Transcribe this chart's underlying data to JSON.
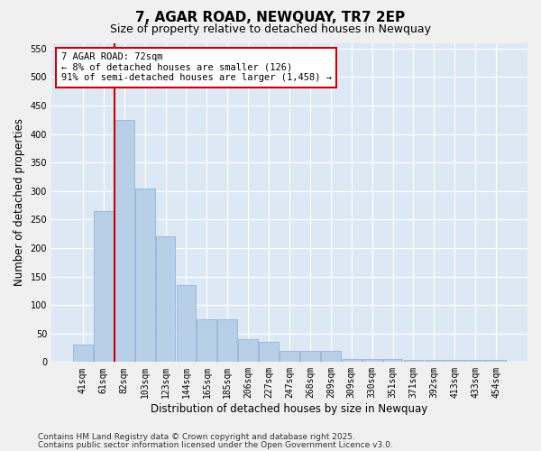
{
  "title_line1": "7, AGAR ROAD, NEWQUAY, TR7 2EP",
  "title_line2": "Size of property relative to detached houses in Newquay",
  "xlabel": "Distribution of detached houses by size in Newquay",
  "ylabel": "Number of detached properties",
  "categories": [
    "41sqm",
    "61sqm",
    "82sqm",
    "103sqm",
    "123sqm",
    "144sqm",
    "165sqm",
    "185sqm",
    "206sqm",
    "227sqm",
    "247sqm",
    "268sqm",
    "289sqm",
    "309sqm",
    "330sqm",
    "351sqm",
    "371sqm",
    "392sqm",
    "413sqm",
    "433sqm",
    "454sqm"
  ],
  "values": [
    30,
    265,
    425,
    305,
    220,
    135,
    75,
    75,
    40,
    35,
    20,
    20,
    20,
    5,
    5,
    5,
    3,
    3,
    3,
    3,
    3
  ],
  "bar_color": "#b8cfe8",
  "bar_edge_color": "#8aadd4",
  "background_color": "#dde8f5",
  "figure_color": "#f0f0f0",
  "grid_color": "#ffffff",
  "annotation_box_text": "7 AGAR ROAD: 72sqm\n← 8% of detached houses are smaller (126)\n91% of semi-detached houses are larger (1,458) →",
  "annotation_box_color": "#cc0000",
  "vline_x": 1.55,
  "vline_color": "#cc0000",
  "ylim": [
    0,
    560
  ],
  "yticks": [
    0,
    50,
    100,
    150,
    200,
    250,
    300,
    350,
    400,
    450,
    500,
    550
  ],
  "footer_line1": "Contains HM Land Registry data © Crown copyright and database right 2025.",
  "footer_line2": "Contains public sector information licensed under the Open Government Licence v3.0.",
  "title_fontsize": 11,
  "subtitle_fontsize": 9,
  "axis_label_fontsize": 8.5,
  "tick_fontsize": 7,
  "annotation_fontsize": 7.5,
  "footer_fontsize": 6.5
}
